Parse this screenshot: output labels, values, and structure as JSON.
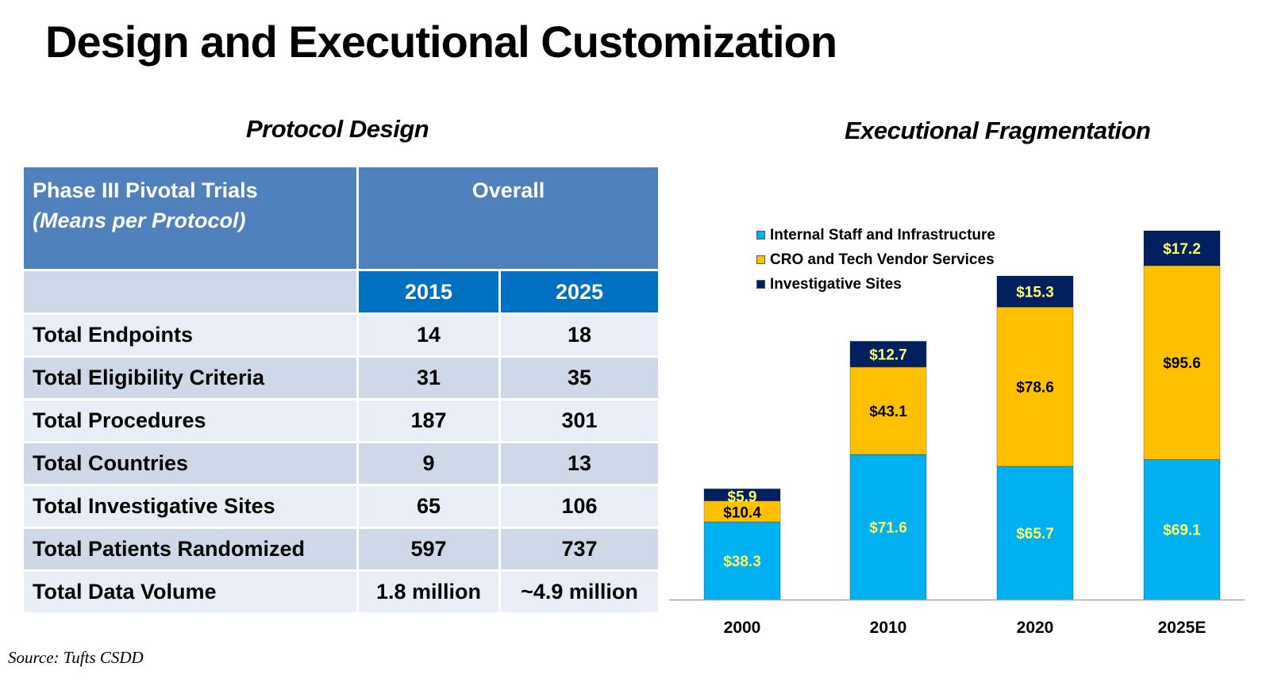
{
  "page": {
    "title": "Design and Executional Customization",
    "source": "Source: Tufts CSDD"
  },
  "protocol": {
    "section_title": "Protocol Design",
    "header": {
      "label_line1": "Phase III Pivotal Trials",
      "label_line2": "(Means per Protocol)",
      "group": "Overall",
      "years": [
        "2015",
        "2025"
      ]
    },
    "rows": [
      {
        "label": "Total Endpoints",
        "v2015": "14",
        "v2025": "18"
      },
      {
        "label": "Total Eligibility Criteria",
        "v2015": "31",
        "v2025": "35"
      },
      {
        "label": "Total Procedures",
        "v2015": "187",
        "v2025": "301"
      },
      {
        "label": "Total Countries",
        "v2015": "9",
        "v2025": "13"
      },
      {
        "label": "Total Investigative Sites",
        "v2015": "65",
        "v2025": "106"
      },
      {
        "label": "Total Patients Randomized",
        "v2015": "597",
        "v2025": "737"
      },
      {
        "label": "Total Data Volume",
        "v2015": "1.8 million",
        "v2025": "~4.9 million"
      }
    ]
  },
  "chart_data": {
    "type": "bar",
    "stacked": true,
    "title": "Executional Fragmentation",
    "xlabel": "",
    "ylabel": "",
    "categories": [
      "2000",
      "2010",
      "2020",
      "2025E"
    ],
    "series": [
      {
        "name": "Internal Staff and Infrastructure",
        "color": "#00b0f0",
        "label_color": "#ffff66",
        "values": [
          38.3,
          71.6,
          65.7,
          69.1
        ],
        "labels": [
          "$38.3",
          "$71.6",
          "$65.7",
          "$69.1"
        ]
      },
      {
        "name": "CRO and Tech Vendor Services",
        "color": "#ffc000",
        "label_color": "#000000",
        "values": [
          10.4,
          43.1,
          78.6,
          95.6
        ],
        "labels": [
          "$10.4",
          "$43.1",
          "$78.6",
          "$95.6"
        ]
      },
      {
        "name": "Investigative Sites",
        "color": "#002060",
        "label_color": "#ffff66",
        "values": [
          5.9,
          12.7,
          15.3,
          17.2
        ],
        "labels": [
          "$5.9",
          "$12.7",
          "$15.3",
          "$17.2"
        ]
      }
    ],
    "ylim": [
      0,
      181.9
    ],
    "grid": false,
    "legend": "top-left",
    "y_axis_visible": false
  }
}
